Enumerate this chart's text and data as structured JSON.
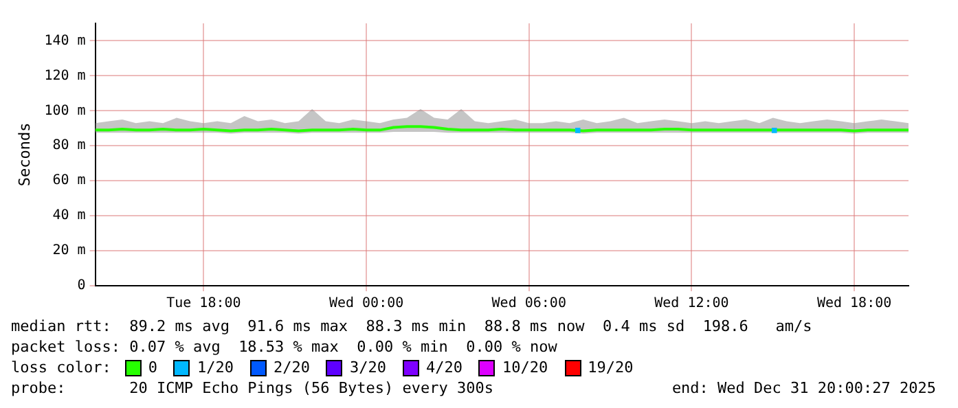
{
  "chart_data": {
    "type": "line",
    "ylabel": "Seconds",
    "legend_title": "loss color:",
    "legend": "bottom",
    "grid": true,
    "line_style": "solid",
    "marker": "none",
    "xlim": [
      "2025-12-30T14:00",
      "2025-12-31T20:00"
    ],
    "xticks": [
      {
        "value": "2025-12-30T18:00",
        "label": "Tue 18:00"
      },
      {
        "value": "2025-12-31T00:00",
        "label": "Wed 00:00"
      },
      {
        "value": "2025-12-31T06:00",
        "label": "Wed 06:00"
      },
      {
        "value": "2025-12-31T12:00",
        "label": "Wed 12:00"
      },
      {
        "value": "2025-12-31T18:00",
        "label": "Wed 18:00"
      }
    ],
    "ylim": [
      0,
      150
    ],
    "yticks": [
      0,
      {
        "value": 20,
        "label": "20 m"
      },
      {
        "value": 40,
        "label": "40 m"
      },
      {
        "value": 60,
        "label": "60 m"
      },
      {
        "value": 80,
        "label": "80 m"
      },
      {
        "value": 100,
        "label": "100 m"
      },
      {
        "value": 120,
        "label": "120 m"
      },
      {
        "value": 140,
        "label": "140 m"
      }
    ],
    "x": [
      "2025-12-30T14:00",
      "2025-12-30T14:30",
      "2025-12-30T15:00",
      "2025-12-30T15:30",
      "2025-12-30T16:00",
      "2025-12-30T16:30",
      "2025-12-30T17:00",
      "2025-12-30T17:30",
      "2025-12-30T18:00",
      "2025-12-30T18:30",
      "2025-12-30T19:00",
      "2025-12-30T19:30",
      "2025-12-30T20:00",
      "2025-12-30T20:30",
      "2025-12-30T21:00",
      "2025-12-30T21:30",
      "2025-12-30T22:00",
      "2025-12-30T22:30",
      "2025-12-30T23:00",
      "2025-12-30T23:30",
      "2025-12-31T00:00",
      "2025-12-31T00:30",
      "2025-12-31T01:00",
      "2025-12-31T01:30",
      "2025-12-31T02:00",
      "2025-12-31T02:30",
      "2025-12-31T03:00",
      "2025-12-31T03:30",
      "2025-12-31T04:00",
      "2025-12-31T04:30",
      "2025-12-31T05:00",
      "2025-12-31T05:30",
      "2025-12-31T06:00",
      "2025-12-31T06:30",
      "2025-12-31T07:00",
      "2025-12-31T07:30",
      "2025-12-31T08:00",
      "2025-12-31T08:30",
      "2025-12-31T09:00",
      "2025-12-31T09:30",
      "2025-12-31T10:00",
      "2025-12-31T10:30",
      "2025-12-31T11:00",
      "2025-12-31T11:30",
      "2025-12-31T12:00",
      "2025-12-31T12:30",
      "2025-12-31T13:00",
      "2025-12-31T13:30",
      "2025-12-31T14:00",
      "2025-12-31T14:30",
      "2025-12-31T15:00",
      "2025-12-31T15:30",
      "2025-12-31T16:00",
      "2025-12-31T16:30",
      "2025-12-31T17:00",
      "2025-12-31T17:30",
      "2025-12-31T18:00",
      "2025-12-31T18:30",
      "2025-12-31T19:00",
      "2025-12-31T19:30",
      "2025-12-31T20:00"
    ],
    "series": [
      {
        "name": "0",
        "type": "line",
        "color": "#26ff00",
        "values": [
          89,
          89,
          89.5,
          89,
          89,
          89.5,
          89,
          89,
          89.5,
          89,
          88.5,
          89,
          89,
          89.5,
          89,
          88.5,
          89,
          89,
          89,
          89.5,
          89,
          89,
          90.5,
          91,
          91,
          90.5,
          89.5,
          89,
          89,
          89,
          89.5,
          89,
          89,
          89,
          89,
          89,
          88.5,
          89,
          89,
          89,
          89,
          89,
          89.5,
          89.5,
          89,
          89,
          89,
          89,
          89,
          89,
          89,
          89,
          89,
          89,
          89,
          89,
          88.5,
          89,
          89,
          89,
          89
        ],
        "lower": [
          87.5,
          87.5,
          87.5,
          87.5,
          87.5,
          87.5,
          87.5,
          87.5,
          87.5,
          87.5,
          87,
          87.5,
          87.5,
          87.5,
          87.5,
          87,
          87.5,
          87.5,
          87.5,
          87.5,
          87.5,
          87.5,
          88,
          88,
          88,
          88,
          87.5,
          87.5,
          87.5,
          87.5,
          87.5,
          87.5,
          87.5,
          87.5,
          87.5,
          87.5,
          87,
          87.5,
          87.5,
          87.5,
          87.5,
          87.5,
          87.5,
          87.5,
          87.5,
          87.5,
          87.5,
          87.5,
          87.5,
          87.5,
          87.5,
          87.5,
          87.5,
          87.5,
          87.5,
          87.5,
          87,
          87.5,
          87.5,
          87.5,
          87.5
        ],
        "upper": [
          93,
          94,
          95,
          93,
          94,
          93,
          96,
          94,
          93,
          94,
          93,
          97,
          94,
          95,
          93,
          94,
          101,
          94,
          93,
          95,
          94,
          93,
          95,
          96,
          101,
          96,
          95,
          101,
          94,
          93,
          94,
          95,
          93,
          93,
          94,
          93,
          95,
          93,
          94,
          96,
          93,
          94,
          95,
          94,
          93,
          94,
          93,
          94,
          95,
          93,
          96,
          94,
          93,
          94,
          95,
          94,
          93,
          94,
          95,
          94,
          93
        ]
      },
      {
        "name": "1/20",
        "type": "scatter",
        "marker": "square",
        "color": "#00b8ff",
        "x": [
          "2025-12-31T07:48",
          "2025-12-31T15:03"
        ],
        "values": [
          88.8,
          88.8
        ]
      },
      {
        "name": "2/20",
        "type": "scatter",
        "marker": "square",
        "color": "#0059ff",
        "values": [
          null,
          null,
          null,
          null,
          null,
          null,
          null,
          null,
          null,
          null,
          null,
          null,
          null,
          null,
          null,
          null,
          null,
          null,
          null,
          null,
          null,
          null,
          null,
          null,
          null,
          null,
          null,
          null,
          null,
          null,
          null,
          null,
          null,
          null,
          null,
          null,
          null,
          null,
          null,
          null,
          null,
          null,
          null,
          null,
          null,
          null,
          null,
          null,
          null,
          null,
          null,
          null,
          null,
          null,
          null,
          null,
          null,
          null,
          null,
          null,
          null
        ]
      },
      {
        "name": "3/20",
        "type": "scatter",
        "marker": "square",
        "color": "#5e00ff",
        "values": [
          null,
          null,
          null,
          null,
          null,
          null,
          null,
          null,
          null,
          null,
          null,
          null,
          null,
          null,
          null,
          null,
          null,
          null,
          null,
          null,
          null,
          null,
          null,
          null,
          null,
          null,
          null,
          null,
          null,
          null,
          null,
          null,
          null,
          null,
          null,
          null,
          null,
          null,
          null,
          null,
          null,
          null,
          null,
          null,
          null,
          null,
          null,
          null,
          null,
          null,
          null,
          null,
          null,
          null,
          null,
          null,
          null,
          null,
          null,
          null,
          null
        ]
      },
      {
        "name": "4/20",
        "type": "scatter",
        "marker": "square",
        "color": "#7e00ff",
        "values": [
          null,
          null,
          null,
          null,
          null,
          null,
          null,
          null,
          null,
          null,
          null,
          null,
          null,
          null,
          null,
          null,
          null,
          null,
          null,
          null,
          null,
          null,
          null,
          null,
          null,
          null,
          null,
          null,
          null,
          null,
          null,
          null,
          null,
          null,
          null,
          null,
          null,
          null,
          null,
          null,
          null,
          null,
          null,
          null,
          null,
          null,
          null,
          null,
          null,
          null,
          null,
          null,
          null,
          null,
          null,
          null,
          null,
          null,
          null,
          null,
          null
        ]
      },
      {
        "name": "10/20",
        "type": "scatter",
        "marker": "square",
        "color": "#dd00ff",
        "values": [
          null,
          null,
          null,
          null,
          null,
          null,
          null,
          null,
          null,
          null,
          null,
          null,
          null,
          null,
          null,
          null,
          null,
          null,
          null,
          null,
          null,
          null,
          null,
          null,
          null,
          null,
          null,
          null,
          null,
          null,
          null,
          null,
          null,
          null,
          null,
          null,
          null,
          null,
          null,
          null,
          null,
          null,
          null,
          null,
          null,
          null,
          null,
          null,
          null,
          null,
          null,
          null,
          null,
          null,
          null,
          null,
          null,
          null,
          null,
          null,
          null
        ]
      },
      {
        "name": "19/20",
        "type": "scatter",
        "marker": "square",
        "color": "#ff0000",
        "values": [
          null,
          null,
          null,
          null,
          null,
          null,
          null,
          null,
          null,
          null,
          null,
          null,
          null,
          null,
          null,
          null,
          null,
          null,
          null,
          null,
          null,
          null,
          null,
          null,
          null,
          null,
          null,
          null,
          null,
          null,
          null,
          null,
          null,
          null,
          null,
          null,
          null,
          null,
          null,
          null,
          null,
          null,
          null,
          null,
          null,
          null,
          null,
          null,
          null,
          null,
          null,
          null,
          null,
          null,
          null,
          null,
          null,
          null,
          null,
          null,
          null
        ]
      }
    ],
    "annotations": [
      "median rtt:  89.2 ms avg  91.6 ms max  88.3 ms min  88.8 ms now  0.4 ms sd  198.6   am/s",
      "packet loss: 0.07 % avg  18.53 % max  0.00 % min  0.00 % now",
      "probe:       20 ICMP Echo Pings (56 Bytes) every 300s",
      "end: Wed Dec 31 20:00:27 2025"
    ]
  }
}
